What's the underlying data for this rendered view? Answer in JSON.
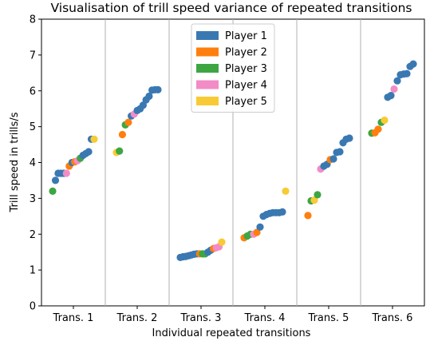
{
  "chart_data": {
    "type": "scatter",
    "title": "Visualisation of trill speed variance of repeated transitions",
    "xlabel": "Individual repeated transitions",
    "ylabel": "Trill speed in trills/s",
    "ylim": [
      0,
      8
    ],
    "yticks": [
      "0",
      "1",
      "2",
      "3",
      "4",
      "5",
      "6",
      "7",
      "8"
    ],
    "categories": [
      "Trans. 1",
      "Trans. 2",
      "Trans. 3",
      "Trans. 4",
      "Trans. 5",
      "Trans. 6"
    ],
    "grid": "vertical separators between categories",
    "legend_position": "top-center",
    "series": [
      {
        "name": "Player 1",
        "color": "#3a78b2",
        "points": [
          [
            1,
            3.5
          ],
          [
            1,
            3.7
          ],
          [
            1,
            3.7
          ],
          [
            1,
            3.7
          ],
          [
            1,
            4.0
          ],
          [
            1,
            4.2
          ],
          [
            1,
            4.25
          ],
          [
            1,
            4.3
          ],
          [
            1,
            4.65
          ],
          [
            2,
            5.3
          ],
          [
            2,
            5.45
          ],
          [
            2,
            5.5
          ],
          [
            2,
            5.6
          ],
          [
            2,
            5.75
          ],
          [
            2,
            5.85
          ],
          [
            2,
            6.02
          ],
          [
            2,
            6.03
          ],
          [
            2,
            6.03
          ],
          [
            3,
            1.35
          ],
          [
            3,
            1.37
          ],
          [
            3,
            1.38
          ],
          [
            3,
            1.4
          ],
          [
            3,
            1.42
          ],
          [
            3,
            1.44
          ],
          [
            3,
            1.45
          ],
          [
            3,
            1.5
          ],
          [
            3,
            1.55
          ],
          [
            4,
            2.2
          ],
          [
            4,
            2.5
          ],
          [
            4,
            2.55
          ],
          [
            4,
            2.58
          ],
          [
            4,
            2.6
          ],
          [
            4,
            2.6
          ],
          [
            4,
            2.6
          ],
          [
            4,
            2.62
          ],
          [
            5,
            3.9
          ],
          [
            5,
            3.95
          ],
          [
            5,
            4.1
          ],
          [
            5,
            4.28
          ],
          [
            5,
            4.3
          ],
          [
            5,
            4.55
          ],
          [
            5,
            4.65
          ],
          [
            5,
            4.68
          ],
          [
            6,
            5.82
          ],
          [
            6,
            5.87
          ],
          [
            6,
            6.28
          ],
          [
            6,
            6.45
          ],
          [
            6,
            6.47
          ],
          [
            6,
            6.48
          ],
          [
            6,
            6.68
          ],
          [
            6,
            6.75
          ]
        ]
      },
      {
        "name": "Player 2",
        "color": "#ff7f0e",
        "points": [
          [
            1,
            3.9
          ],
          [
            1,
            4.02
          ],
          [
            2,
            4.78
          ],
          [
            2,
            5.12
          ],
          [
            3,
            1.45
          ],
          [
            3,
            1.6
          ],
          [
            4,
            1.9
          ],
          [
            4,
            2.05
          ],
          [
            5,
            2.52
          ],
          [
            5,
            4.08
          ],
          [
            6,
            4.83
          ],
          [
            6,
            4.93
          ]
        ]
      },
      {
        "name": "Player 3",
        "color": "#3da643",
        "points": [
          [
            1,
            3.2
          ],
          [
            1,
            4.12
          ],
          [
            2,
            4.32
          ],
          [
            2,
            5.05
          ],
          [
            3,
            1.45
          ],
          [
            3,
            1.45
          ],
          [
            4,
            1.95
          ],
          [
            4,
            2.0
          ],
          [
            5,
            2.93
          ],
          [
            5,
            3.1
          ],
          [
            6,
            4.82
          ],
          [
            6,
            5.12
          ]
        ]
      },
      {
        "name": "Player 4",
        "color": "#f28cc6",
        "points": [
          [
            1,
            3.7
          ],
          [
            1,
            4.05
          ],
          [
            2,
            5.35
          ],
          [
            3,
            1.62
          ],
          [
            3,
            1.65
          ],
          [
            4,
            2.0
          ],
          [
            5,
            3.82
          ],
          [
            6,
            6.05
          ]
        ]
      },
      {
        "name": "Player 5",
        "color": "#f8cb36",
        "points": [
          [
            1,
            4.65
          ],
          [
            2,
            4.28
          ],
          [
            3,
            1.78
          ],
          [
            4,
            3.2
          ],
          [
            5,
            2.95
          ],
          [
            6,
            5.18
          ]
        ]
      }
    ]
  }
}
